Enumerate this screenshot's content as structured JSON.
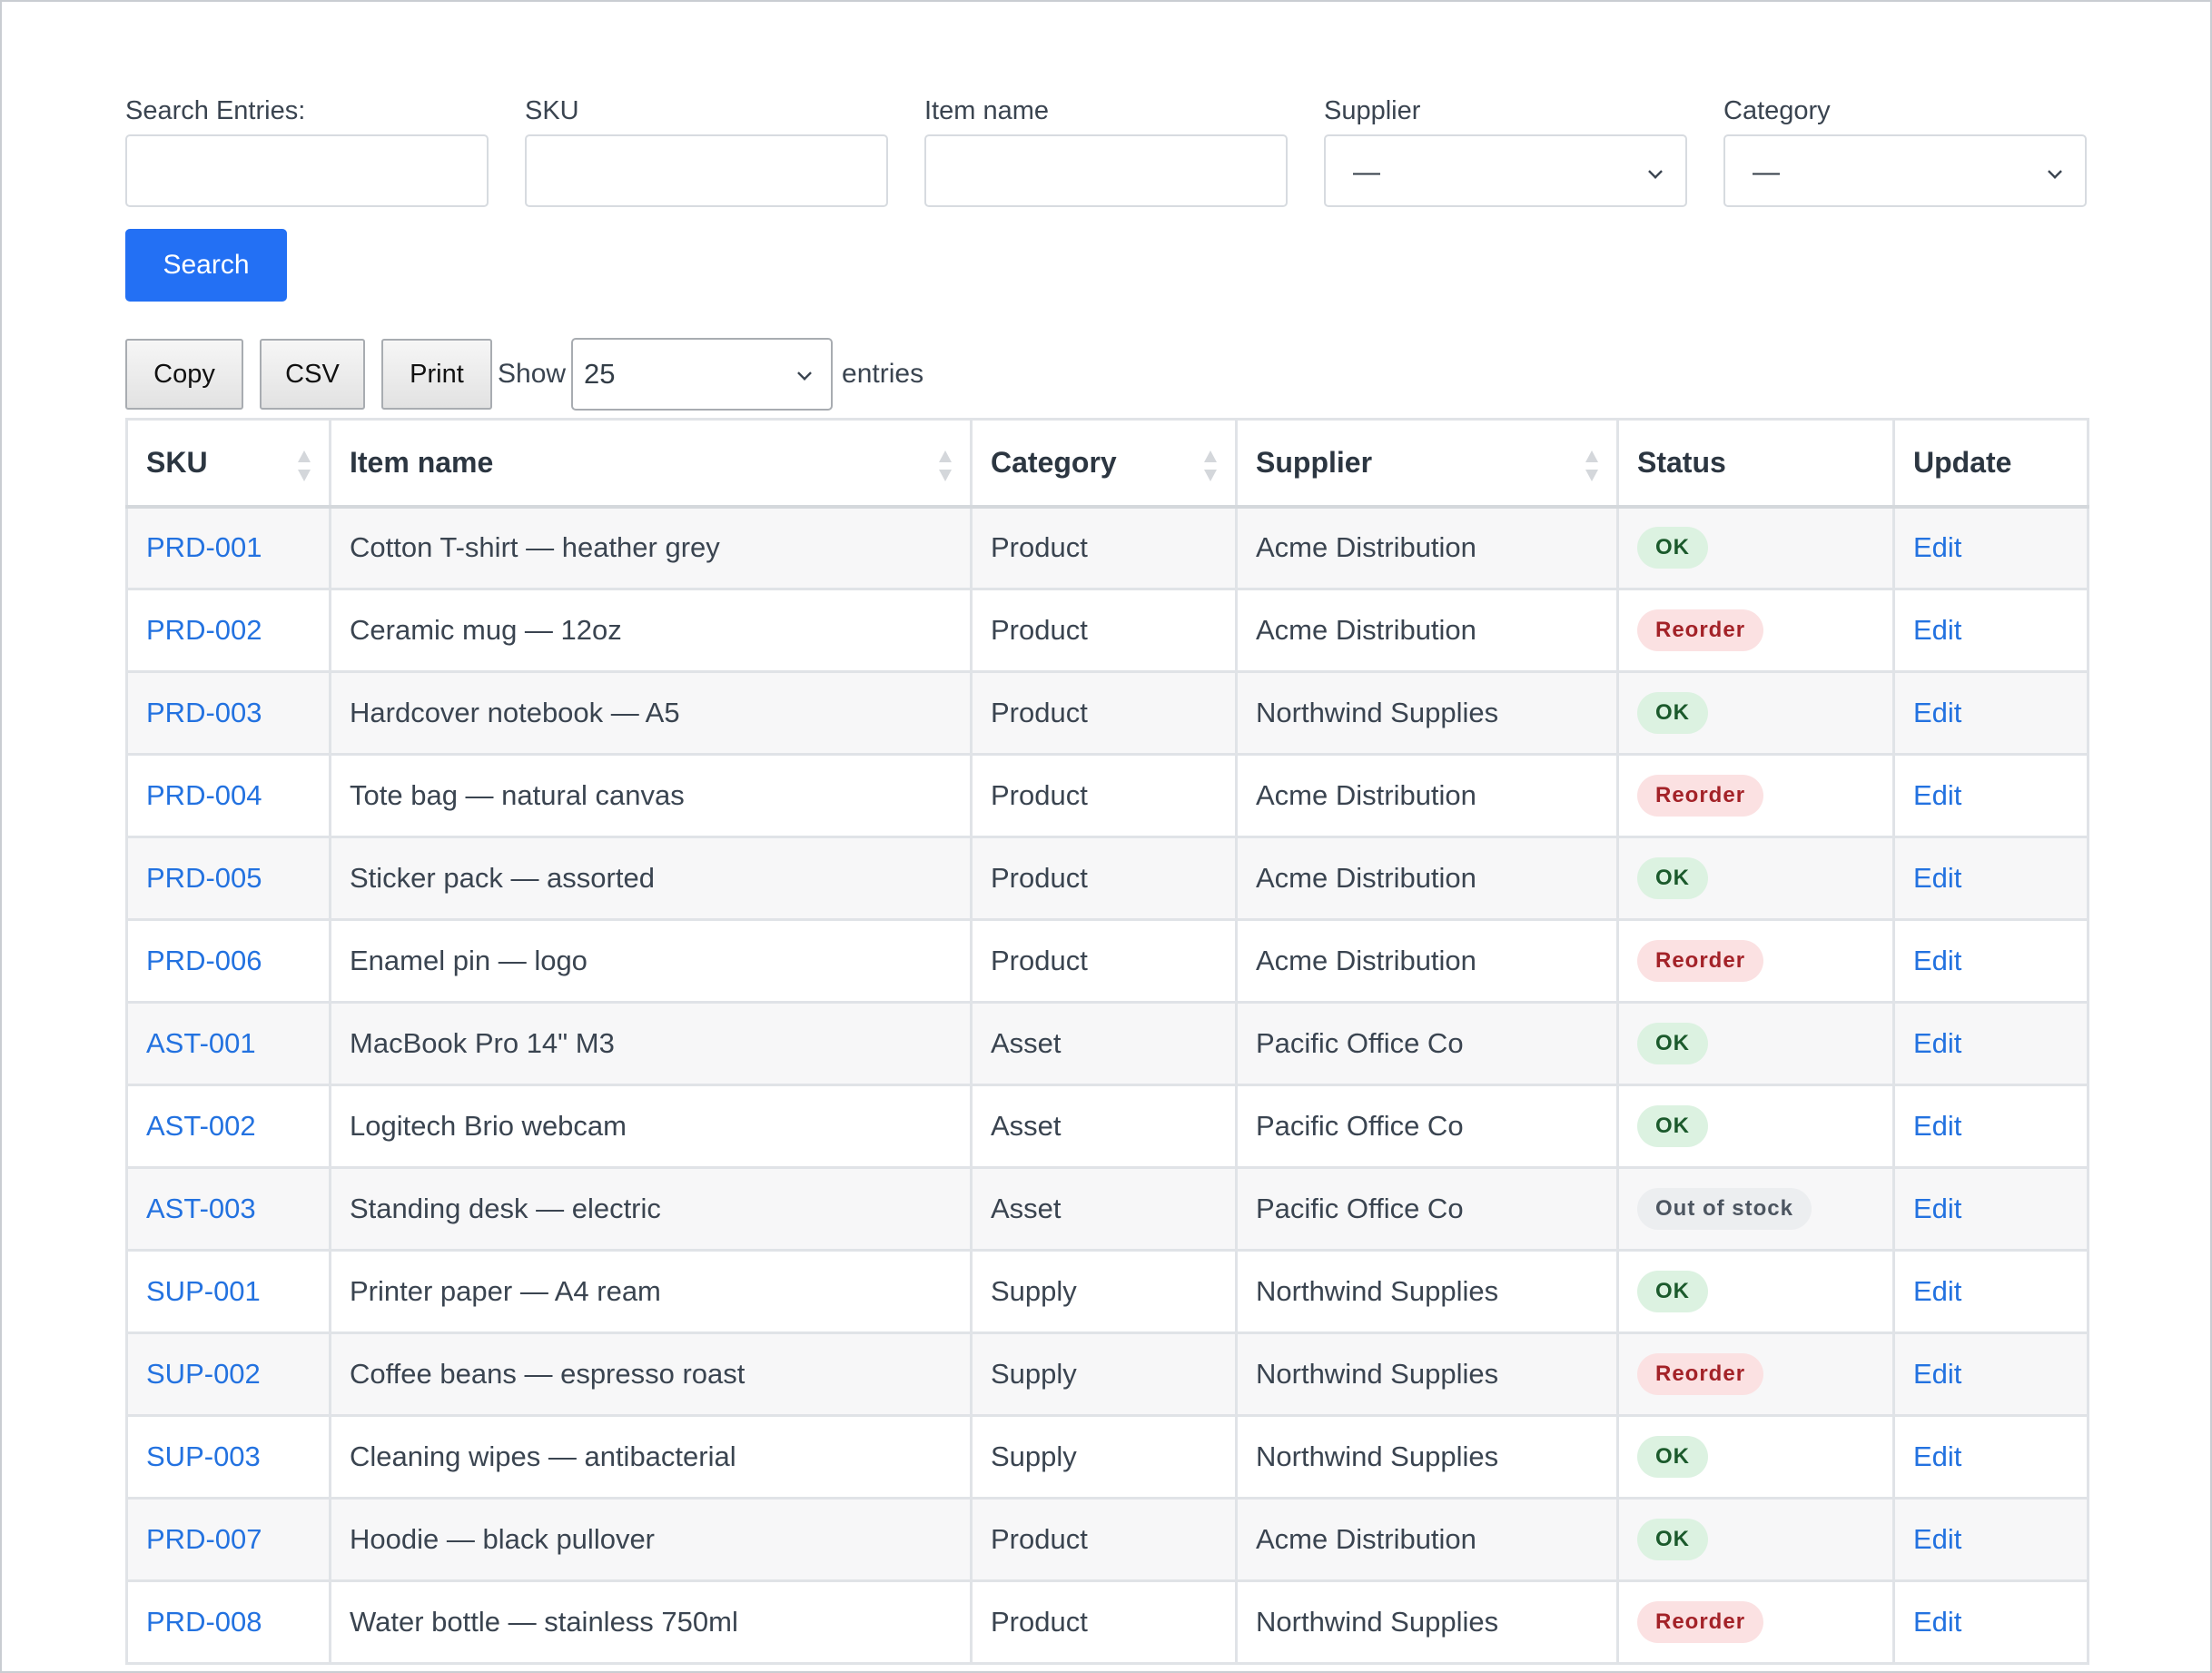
{
  "filters": {
    "search_label": "Search Entries:",
    "search_value": "",
    "sku_label": "SKU",
    "sku_value": "",
    "item_label": "Item name",
    "item_value": "",
    "supplier_label": "Supplier",
    "supplier_value": "—",
    "category_label": "Category",
    "category_value": "—",
    "search_button": "Search"
  },
  "toolbar": {
    "copy": "Copy",
    "csv": "CSV",
    "print": "Print",
    "show": "Show",
    "page_length": "25",
    "entries": "entries"
  },
  "table": {
    "headers": {
      "sku": "SKU",
      "item": "Item name",
      "category": "Category",
      "supplier": "Supplier",
      "status": "Status",
      "update": "Update"
    },
    "rows": [
      {
        "sku": "PRD-001",
        "item": "Cotton T-shirt — heather grey",
        "category": "Product",
        "supplier": "Acme Distribution",
        "status": "OK",
        "status_kind": "ok",
        "update": "Edit"
      },
      {
        "sku": "PRD-002",
        "item": "Ceramic mug — 12oz",
        "category": "Product",
        "supplier": "Acme Distribution",
        "status": "Reorder",
        "status_kind": "reorder",
        "update": "Edit"
      },
      {
        "sku": "PRD-003",
        "item": "Hardcover notebook — A5",
        "category": "Product",
        "supplier": "Northwind Supplies",
        "status": "OK",
        "status_kind": "ok",
        "update": "Edit"
      },
      {
        "sku": "PRD-004",
        "item": "Tote bag — natural canvas",
        "category": "Product",
        "supplier": "Acme Distribution",
        "status": "Reorder",
        "status_kind": "reorder",
        "update": "Edit"
      },
      {
        "sku": "PRD-005",
        "item": "Sticker pack — assorted",
        "category": "Product",
        "supplier": "Acme Distribution",
        "status": "OK",
        "status_kind": "ok",
        "update": "Edit"
      },
      {
        "sku": "PRD-006",
        "item": "Enamel pin — logo",
        "category": "Product",
        "supplier": "Acme Distribution",
        "status": "Reorder",
        "status_kind": "reorder",
        "update": "Edit"
      },
      {
        "sku": "AST-001",
        "item": "MacBook Pro 14\" M3",
        "category": "Asset",
        "supplier": "Pacific Office Co",
        "status": "OK",
        "status_kind": "ok",
        "update": "Edit"
      },
      {
        "sku": "AST-002",
        "item": "Logitech Brio webcam",
        "category": "Asset",
        "supplier": "Pacific Office Co",
        "status": "OK",
        "status_kind": "ok",
        "update": "Edit"
      },
      {
        "sku": "AST-003",
        "item": "Standing desk — electric",
        "category": "Asset",
        "supplier": "Pacific Office Co",
        "status": "Out of stock",
        "status_kind": "oos",
        "update": "Edit"
      },
      {
        "sku": "SUP-001",
        "item": "Printer paper — A4 ream",
        "category": "Supply",
        "supplier": "Northwind Supplies",
        "status": "OK",
        "status_kind": "ok",
        "update": "Edit"
      },
      {
        "sku": "SUP-002",
        "item": "Coffee beans — espresso roast",
        "category": "Supply",
        "supplier": "Northwind Supplies",
        "status": "Reorder",
        "status_kind": "reorder",
        "update": "Edit"
      },
      {
        "sku": "SUP-003",
        "item": "Cleaning wipes — antibacterial",
        "category": "Supply",
        "supplier": "Northwind Supplies",
        "status": "OK",
        "status_kind": "ok",
        "update": "Edit"
      },
      {
        "sku": "PRD-007",
        "item": "Hoodie — black pullover",
        "category": "Product",
        "supplier": "Acme Distribution",
        "status": "OK",
        "status_kind": "ok",
        "update": "Edit"
      },
      {
        "sku": "PRD-008",
        "item": "Water bottle — stainless 750ml",
        "category": "Product",
        "supplier": "Northwind Supplies",
        "status": "Reorder",
        "status_kind": "reorder",
        "update": "Edit"
      }
    ]
  },
  "colors": {
    "primary": "#2370f4",
    "link": "#2372e0",
    "ok_bg": "#dcf2e1",
    "reorder_bg": "#fbe1e2",
    "oos_bg": "#eceef0"
  }
}
